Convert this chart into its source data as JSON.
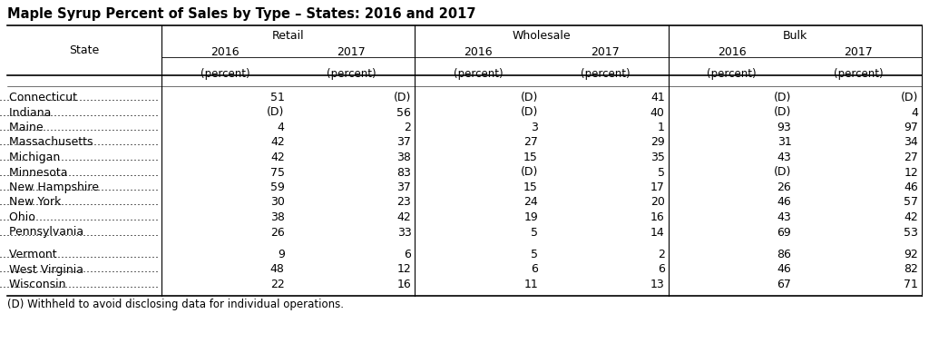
{
  "title": "Maple Syrup Percent of Sales by Type – States: 2016 and 2017",
  "col_groups": [
    "Retail",
    "Wholesale",
    "Bulk"
  ],
  "col_years": [
    "2016",
    "2017",
    "2016",
    "2017",
    "2016",
    "2017"
  ],
  "col_unit": "(percent)",
  "state_col_header": "State",
  "states_group1": [
    "Connecticut",
    "Indiana",
    "Maine",
    "Massachusetts",
    "Michigan",
    "Minnesota",
    "New Hampshire",
    "New York",
    "Ohio",
    "Pennsylvania"
  ],
  "states_group2": [
    "Vermont",
    "West Virginia",
    "Wisconsin"
  ],
  "data_group1": [
    [
      "51",
      "(D)",
      "(D)",
      "41",
      "(D)",
      "(D)"
    ],
    [
      "(D)",
      "56",
      "(D)",
      "40",
      "(D)",
      "4"
    ],
    [
      "4",
      "2",
      "3",
      "1",
      "93",
      "97"
    ],
    [
      "42",
      "37",
      "27",
      "29",
      "31",
      "34"
    ],
    [
      "42",
      "38",
      "15",
      "35",
      "43",
      "27"
    ],
    [
      "75",
      "83",
      "(D)",
      "5",
      "(D)",
      "12"
    ],
    [
      "59",
      "37",
      "15",
      "17",
      "26",
      "46"
    ],
    [
      "30",
      "23",
      "24",
      "20",
      "46",
      "57"
    ],
    [
      "38",
      "42",
      "19",
      "16",
      "43",
      "42"
    ],
    [
      "26",
      "33",
      "5",
      "14",
      "69",
      "53"
    ]
  ],
  "data_group2": [
    [
      "9",
      "6",
      "5",
      "2",
      "86",
      "92"
    ],
    [
      "48",
      "12",
      "6",
      "6",
      "46",
      "82"
    ],
    [
      "22",
      "16",
      "11",
      "13",
      "67",
      "71"
    ]
  ],
  "footnote": "(D) Withheld to avoid disclosing data for individual operations.",
  "bg_color": "#ffffff",
  "text_color": "#000000",
  "line_color": "#000000",
  "title_fontsize": 10.5,
  "body_fontsize": 9,
  "header_fontsize": 9
}
